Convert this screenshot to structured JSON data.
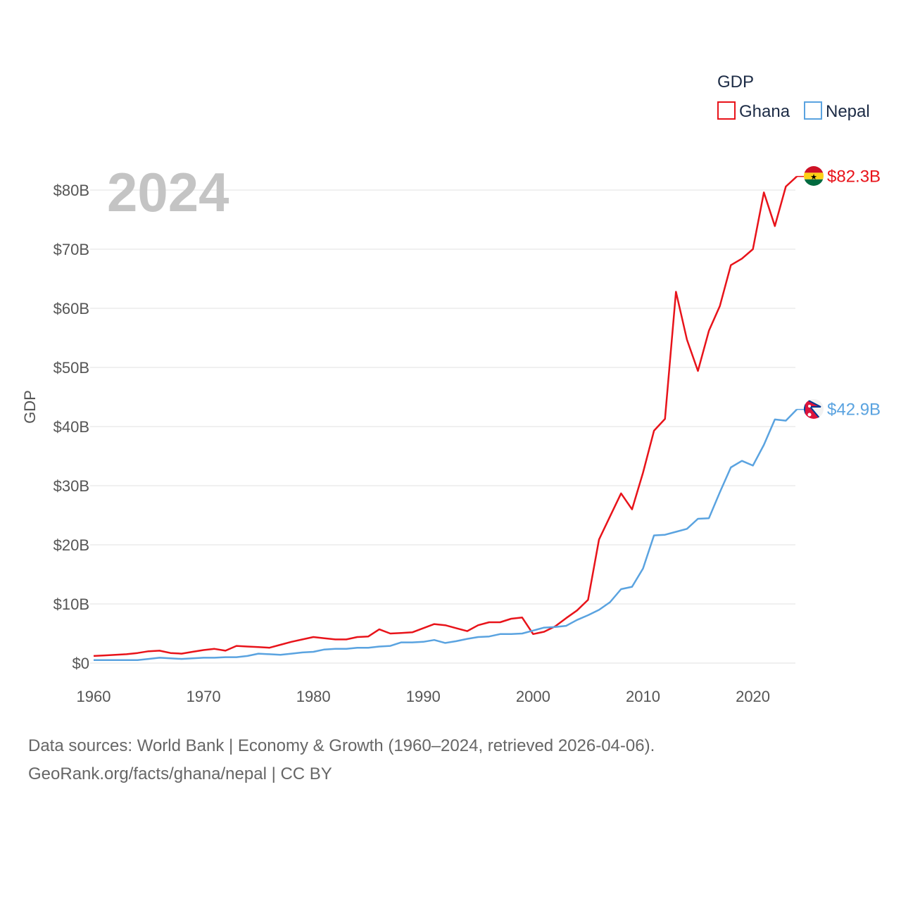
{
  "colors": {
    "ghana": "#e8131a",
    "nepal": "#5aa3e0",
    "grid": "#e6e6e6",
    "axis_text": "#555555",
    "year": "#c4c4c4"
  },
  "chart_data": {
    "type": "line",
    "title": "",
    "year_label": "2024",
    "xlabel": "",
    "ylabel": "GDP",
    "xlim": [
      1960,
      2024
    ],
    "ylim": [
      0,
      85
    ],
    "x_ticks": [
      1960,
      1970,
      1980,
      1990,
      2000,
      2010,
      2020
    ],
    "x_tick_labels": [
      "1960",
      "1970",
      "1980",
      "1990",
      "2000",
      "2010",
      "2020"
    ],
    "y_ticks": [
      0,
      10,
      20,
      30,
      40,
      50,
      60,
      70,
      80
    ],
    "y_tick_labels": [
      "$0",
      "$10B",
      "$20B",
      "$30B",
      "$40B",
      "$50B",
      "$60B",
      "$70B",
      "$80B"
    ],
    "legend": {
      "title": "GDP",
      "position": "top-right"
    },
    "x": [
      1960,
      1961,
      1962,
      1963,
      1964,
      1965,
      1966,
      1967,
      1968,
      1969,
      1970,
      1971,
      1972,
      1973,
      1974,
      1975,
      1976,
      1977,
      1978,
      1979,
      1980,
      1981,
      1982,
      1983,
      1984,
      1985,
      1986,
      1987,
      1988,
      1989,
      1990,
      1991,
      1992,
      1993,
      1994,
      1995,
      1996,
      1997,
      1998,
      1999,
      2000,
      2001,
      2002,
      2003,
      2004,
      2005,
      2006,
      2007,
      2008,
      2009,
      2010,
      2011,
      2012,
      2013,
      2014,
      2015,
      2016,
      2017,
      2018,
      2019,
      2020,
      2021,
      2022,
      2023,
      2024
    ],
    "series": [
      {
        "name": "Ghana",
        "end_label": "$82.3B",
        "values": [
          1.2,
          1.3,
          1.4,
          1.5,
          1.7,
          2.0,
          2.1,
          1.7,
          1.6,
          1.9,
          2.2,
          2.4,
          2.1,
          2.9,
          2.8,
          2.7,
          2.6,
          3.1,
          3.6,
          4.0,
          4.4,
          4.2,
          4.0,
          4.0,
          4.4,
          4.5,
          5.7,
          5.0,
          5.1,
          5.2,
          5.9,
          6.6,
          6.4,
          5.9,
          5.4,
          6.4,
          6.9,
          6.9,
          7.5,
          7.7,
          4.9,
          5.3,
          6.2,
          7.6,
          8.9,
          10.7,
          20.9,
          24.8,
          28.7,
          26.0,
          32.2,
          39.3,
          41.3,
          62.8,
          54.7,
          49.4,
          56.2,
          60.4,
          67.3,
          68.4,
          70.0,
          79.6,
          73.9,
          80.6,
          82.3
        ]
      },
      {
        "name": "Nepal",
        "end_label": "$42.9B",
        "values": [
          0.5,
          0.5,
          0.5,
          0.5,
          0.5,
          0.7,
          0.9,
          0.8,
          0.7,
          0.8,
          0.9,
          0.9,
          1.0,
          1.0,
          1.2,
          1.6,
          1.5,
          1.4,
          1.6,
          1.8,
          1.9,
          2.3,
          2.4,
          2.4,
          2.6,
          2.6,
          2.8,
          2.9,
          3.5,
          3.5,
          3.6,
          3.9,
          3.4,
          3.7,
          4.1,
          4.4,
          4.5,
          4.9,
          4.9,
          5.0,
          5.5,
          6.0,
          6.1,
          6.3,
          7.3,
          8.1,
          9.0,
          10.3,
          12.5,
          12.9,
          16.0,
          21.6,
          21.7,
          22.2,
          22.7,
          24.4,
          24.5,
          28.9,
          33.1,
          34.2,
          33.4,
          36.9,
          41.2,
          41.0,
          42.9
        ]
      }
    ]
  },
  "footer": {
    "line1": "Data sources: World Bank | Economy & Growth (1960–2024, retrieved 2026-04-06).",
    "line2": "GeoRank.org/facts/ghana/nepal | CC BY"
  }
}
